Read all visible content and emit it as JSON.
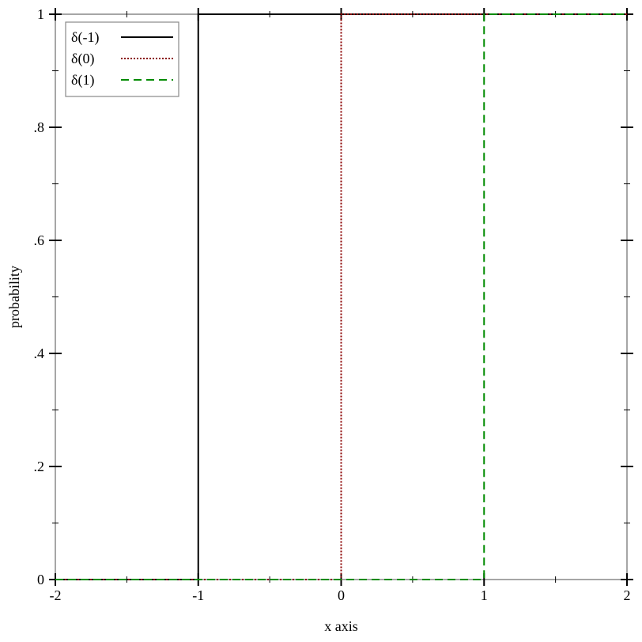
{
  "chart_data": {
    "type": "line",
    "title": "",
    "xlabel": "x axis",
    "ylabel": "probability",
    "xlim": [
      -2,
      2
    ],
    "ylim": [
      0,
      1
    ],
    "x_ticks": [
      -2,
      -1,
      0,
      1,
      2
    ],
    "x_tick_labels": [
      "-2",
      "-1",
      "0",
      "1",
      "2"
    ],
    "y_ticks": [
      0,
      0.2,
      0.4,
      0.6,
      0.8,
      1
    ],
    "y_tick_labels": [
      "0",
      ".2",
      ".4",
      ".6",
      ".8",
      "1"
    ],
    "grid": false,
    "legend": "top-left",
    "series": [
      {
        "name": "δ(-1)",
        "color": "#000000",
        "style": "solid",
        "x": [
          -2,
          -1,
          -1,
          2
        ],
        "y": [
          0,
          0,
          1,
          1
        ]
      },
      {
        "name": "δ(0)",
        "color": "#8b0000",
        "style": "dotted",
        "x": [
          -2,
          0,
          0,
          2
        ],
        "y": [
          0,
          0,
          1,
          1
        ]
      },
      {
        "name": "δ(1)",
        "color": "#008b00",
        "style": "dashed",
        "x": [
          -2,
          1,
          1,
          2
        ],
        "y": [
          0,
          0,
          1,
          1
        ]
      }
    ]
  }
}
